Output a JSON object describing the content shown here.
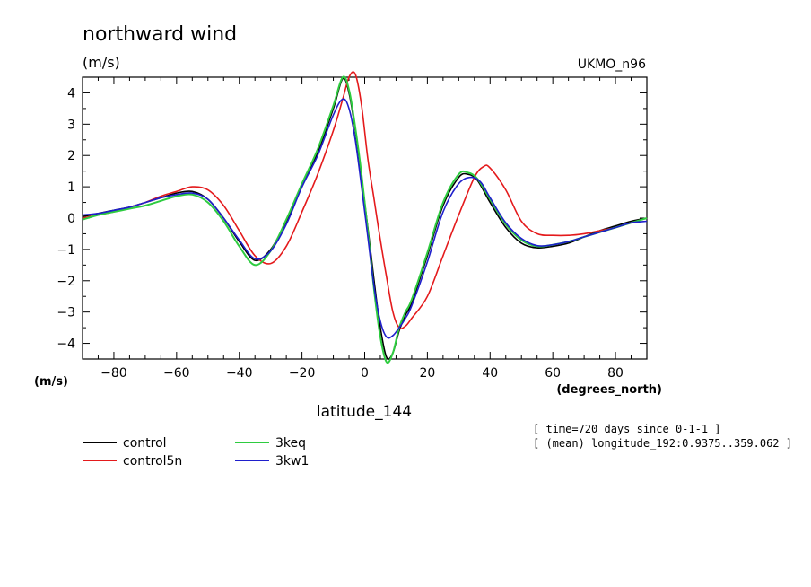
{
  "header": {
    "title": "northward wind",
    "units": "(m/s)",
    "source": "UKMO_n96"
  },
  "meta": {
    "time": "[ time=720 days since 0-1-1 ]",
    "mean": "[ (mean) longitude_192:0.9375..359.062 ]"
  },
  "chart_data": {
    "type": "line",
    "title": "northward wind",
    "subtitle": "(m/s)",
    "ylabel": "(m/s)",
    "xlabel": "latitude_144",
    "xunits": "(degrees_north)",
    "xlim": [
      -90,
      90
    ],
    "ylim": [
      -4.5,
      4.5
    ],
    "xticks": [
      -80,
      -60,
      -40,
      -20,
      0,
      20,
      40,
      60,
      80
    ],
    "yticks": [
      -4,
      -3,
      -2,
      -1,
      0,
      1,
      2,
      3,
      4
    ],
    "xtick_labels": [
      "−80",
      "−60",
      "−40",
      "−20",
      "0",
      "20",
      "40",
      "60",
      "80"
    ],
    "ytick_labels": [
      "−4",
      "−3",
      "−2",
      "−1",
      "0",
      "1",
      "2",
      "3",
      "4"
    ],
    "grid": false,
    "legend": "bottom-left",
    "series": [
      {
        "name": "control",
        "color": "#000000",
        "x": [
          -90,
          -85,
          -80,
          -75,
          -70,
          -65,
          -60,
          -55,
          -50,
          -45,
          -40,
          -35,
          -30,
          -25,
          -20,
          -15,
          -10,
          -7,
          -5,
          -3,
          -1,
          1,
          3,
          5,
          7,
          9,
          11,
          13,
          15,
          20,
          25,
          30,
          33,
          36,
          40,
          45,
          50,
          55,
          60,
          65,
          70,
          75,
          80,
          85,
          90
        ],
        "y": [
          0.05,
          0.15,
          0.25,
          0.35,
          0.5,
          0.65,
          0.8,
          0.85,
          0.6,
          0.0,
          -0.75,
          -1.35,
          -1.0,
          -0.1,
          1.0,
          2.1,
          3.5,
          4.45,
          4.0,
          2.8,
          1.3,
          -0.3,
          -2.0,
          -3.5,
          -4.45,
          -4.3,
          -3.6,
          -3.1,
          -2.7,
          -1.2,
          0.4,
          1.3,
          1.4,
          1.2,
          0.5,
          -0.3,
          -0.8,
          -0.95,
          -0.9,
          -0.8,
          -0.6,
          -0.4,
          -0.25,
          -0.1,
          0.0
        ]
      },
      {
        "name": "control5n",
        "color": "#e41a1c",
        "x": [
          -90,
          -85,
          -80,
          -75,
          -70,
          -65,
          -60,
          -55,
          -50,
          -45,
          -40,
          -35,
          -30,
          -25,
          -20,
          -15,
          -10,
          -7,
          -5,
          -3,
          -1,
          1,
          3,
          5,
          7,
          9,
          11,
          13,
          15,
          20,
          25,
          30,
          35,
          38,
          40,
          45,
          50,
          55,
          60,
          65,
          70,
          75,
          80,
          85,
          90
        ],
        "y": [
          0.0,
          0.1,
          0.2,
          0.35,
          0.5,
          0.7,
          0.85,
          1.0,
          0.9,
          0.4,
          -0.4,
          -1.2,
          -1.45,
          -0.9,
          0.2,
          1.4,
          2.8,
          3.8,
          4.5,
          4.6,
          3.6,
          1.9,
          0.6,
          -0.7,
          -1.9,
          -3.0,
          -3.5,
          -3.45,
          -3.2,
          -2.5,
          -1.2,
          0.1,
          1.3,
          1.65,
          1.6,
          0.9,
          -0.1,
          -0.5,
          -0.55,
          -0.55,
          -0.5,
          -0.4,
          -0.3,
          -0.15,
          0.0
        ]
      },
      {
        "name": "3keq",
        "color": "#2ecc40",
        "x": [
          -90,
          -85,
          -80,
          -75,
          -70,
          -65,
          -60,
          -55,
          -50,
          -45,
          -40,
          -35,
          -30,
          -25,
          -20,
          -15,
          -10,
          -7,
          -5,
          -3,
          -1,
          1,
          3,
          5,
          7,
          9,
          11,
          13,
          15,
          20,
          25,
          30,
          33,
          36,
          40,
          45,
          50,
          55,
          60,
          65,
          70,
          75,
          80,
          85,
          90
        ],
        "y": [
          -0.05,
          0.1,
          0.2,
          0.3,
          0.4,
          0.55,
          0.7,
          0.75,
          0.5,
          -0.1,
          -0.9,
          -1.5,
          -1.05,
          -0.05,
          1.1,
          2.2,
          3.6,
          4.5,
          4.1,
          2.9,
          1.4,
          -0.4,
          -2.3,
          -3.8,
          -4.6,
          -4.3,
          -3.5,
          -3.0,
          -2.6,
          -1.1,
          0.5,
          1.4,
          1.45,
          1.25,
          0.6,
          -0.2,
          -0.7,
          -0.9,
          -0.85,
          -0.75,
          -0.6,
          -0.45,
          -0.3,
          -0.15,
          0.0
        ]
      },
      {
        "name": "3kw1",
        "color": "#1f1fcc",
        "x": [
          -90,
          -85,
          -80,
          -75,
          -70,
          -65,
          -60,
          -55,
          -50,
          -45,
          -40,
          -35,
          -30,
          -25,
          -20,
          -15,
          -10,
          -7,
          -5,
          -3,
          -1,
          1,
          3,
          5,
          7,
          9,
          11,
          13,
          15,
          20,
          25,
          30,
          34,
          37,
          40,
          45,
          50,
          55,
          60,
          65,
          70,
          75,
          80,
          85,
          90
        ],
        "y": [
          0.1,
          0.15,
          0.25,
          0.35,
          0.5,
          0.65,
          0.75,
          0.8,
          0.6,
          0.0,
          -0.7,
          -1.3,
          -1.05,
          -0.2,
          1.0,
          2.0,
          3.3,
          3.8,
          3.5,
          2.5,
          1.0,
          -0.6,
          -2.2,
          -3.3,
          -3.8,
          -3.75,
          -3.5,
          -3.2,
          -2.8,
          -1.4,
          0.2,
          1.1,
          1.3,
          1.15,
          0.65,
          -0.15,
          -0.65,
          -0.88,
          -0.85,
          -0.75,
          -0.6,
          -0.45,
          -0.3,
          -0.15,
          -0.1
        ]
      }
    ]
  }
}
